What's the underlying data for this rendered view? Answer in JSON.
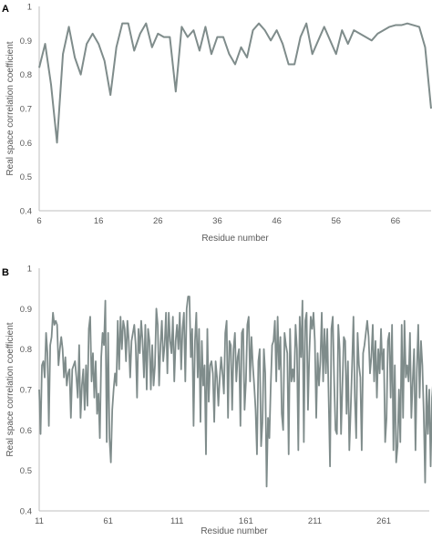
{
  "chart_data": [
    {
      "panel": "A",
      "type": "line",
      "xlabel": "Residue number",
      "ylabel": "Real space correlation coefficient",
      "xlim": [
        6,
        72
      ],
      "ylim": [
        0.4,
        1
      ],
      "xticks": [
        6,
        16,
        26,
        36,
        46,
        56,
        66
      ],
      "yticks": [
        0.4,
        0.5,
        0.6,
        0.7,
        0.8,
        0.9,
        1
      ],
      "yticklabels": [
        "0.4",
        "0.5",
        "0.6",
        "0.7",
        "0.8",
        "0.9",
        "1"
      ],
      "grid": false,
      "color": "#7f8c8b",
      "x": [
        6,
        7,
        8,
        9,
        10,
        11,
        12,
        13,
        14,
        15,
        16,
        17,
        18,
        19,
        20,
        21,
        22,
        23,
        24,
        25,
        26,
        27,
        28,
        29,
        30,
        31,
        32,
        33,
        34,
        35,
        36,
        37,
        38,
        39,
        40,
        41,
        42,
        43,
        44,
        45,
        46,
        47,
        48,
        49,
        50,
        51,
        52,
        53,
        54,
        55,
        56,
        57,
        58,
        59,
        60,
        61,
        62,
        63,
        64,
        65,
        66,
        67,
        68,
        69,
        70,
        71,
        72
      ],
      "y": [
        0.82,
        0.89,
        0.77,
        0.6,
        0.86,
        0.94,
        0.85,
        0.8,
        0.89,
        0.92,
        0.89,
        0.84,
        0.74,
        0.88,
        0.95,
        0.95,
        0.87,
        0.92,
        0.95,
        0.88,
        0.92,
        0.91,
        0.91,
        0.75,
        0.94,
        0.91,
        0.93,
        0.87,
        0.94,
        0.86,
        0.91,
        0.91,
        0.86,
        0.83,
        0.88,
        0.85,
        0.93,
        0.95,
        0.93,
        0.9,
        0.93,
        0.89,
        0.83,
        0.83,
        0.91,
        0.95,
        0.86,
        0.9,
        0.94,
        0.9,
        0.86,
        0.93,
        0.89,
        0.93,
        0.92,
        0.91,
        0.9,
        0.92,
        0.93,
        0.94,
        0.945,
        0.945,
        0.95,
        0.945,
        0.94,
        0.88,
        0.7
      ]
    },
    {
      "panel": "B",
      "type": "line",
      "xlabel": "Residue number",
      "ylabel": "Real space correlation coefficient",
      "xlim": [
        11,
        294
      ],
      "ylim": [
        0.4,
        1
      ],
      "xticks": [
        11,
        61,
        111,
        161,
        211,
        261
      ],
      "yticks": [
        0.4,
        0.5,
        0.6,
        0.7,
        0.8,
        0.9,
        1
      ],
      "yticklabels": [
        "0.4",
        "0.5",
        "0.6",
        "0.7",
        "0.8",
        "0.9",
        "1"
      ],
      "grid": false,
      "color": "#7f8c8b",
      "x_start": 11,
      "x_step": 1,
      "y": [
        0.7,
        0.59,
        0.76,
        0.77,
        0.73,
        0.84,
        0.79,
        0.61,
        0.81,
        0.83,
        0.89,
        0.86,
        0.87,
        0.86,
        0.76,
        0.8,
        0.83,
        0.8,
        0.73,
        0.78,
        0.71,
        0.74,
        0.75,
        0.63,
        0.75,
        0.76,
        0.77,
        0.73,
        0.68,
        0.81,
        0.63,
        0.71,
        0.75,
        0.65,
        0.76,
        0.66,
        0.85,
        0.88,
        0.72,
        0.79,
        0.68,
        0.77,
        0.64,
        0.69,
        0.58,
        0.78,
        0.84,
        0.81,
        0.92,
        0.57,
        0.84,
        0.58,
        0.52,
        0.65,
        0.7,
        0.74,
        0.71,
        0.87,
        0.75,
        0.88,
        0.8,
        0.87,
        0.85,
        0.77,
        0.87,
        0.82,
        0.73,
        0.82,
        0.84,
        0.86,
        0.81,
        0.68,
        0.85,
        0.79,
        0.87,
        0.82,
        0.73,
        0.86,
        0.7,
        0.85,
        0.82,
        0.7,
        0.81,
        0.71,
        0.76,
        0.9,
        0.86,
        0.71,
        0.81,
        0.87,
        0.77,
        0.81,
        0.89,
        0.74,
        0.89,
        0.82,
        0.79,
        0.88,
        0.72,
        0.82,
        0.86,
        0.8,
        0.89,
        0.75,
        0.85,
        0.89,
        0.72,
        0.9,
        0.93,
        0.93,
        0.78,
        0.85,
        0.61,
        0.82,
        0.89,
        0.73,
        0.85,
        0.62,
        0.82,
        0.71,
        0.76,
        0.54,
        0.85,
        0.67,
        0.76,
        0.77,
        0.74,
        0.62,
        0.77,
        0.73,
        0.66,
        0.73,
        0.78,
        0.74,
        0.69,
        0.84,
        0.87,
        0.63,
        0.82,
        0.81,
        0.65,
        0.8,
        0.84,
        0.72,
        0.78,
        0.8,
        0.61,
        0.84,
        0.85,
        0.65,
        0.72,
        0.86,
        0.88,
        0.72,
        0.83,
        0.76,
        0.71,
        0.65,
        0.54,
        0.77,
        0.8,
        0.56,
        0.62,
        0.8,
        0.74,
        0.46,
        0.63,
        0.58,
        0.71,
        0.81,
        0.82,
        0.87,
        0.72,
        0.88,
        0.75,
        0.83,
        0.64,
        0.6,
        0.84,
        0.81,
        0.79,
        0.54,
        0.85,
        0.72,
        0.75,
        0.72,
        0.86,
        0.8,
        0.55,
        0.88,
        0.78,
        0.92,
        0.57,
        0.87,
        0.89,
        0.65,
        0.79,
        0.88,
        0.85,
        0.89,
        0.82,
        0.63,
        0.79,
        0.71,
        0.77,
        0.89,
        0.72,
        0.85,
        0.74,
        0.85,
        0.68,
        0.51,
        0.85,
        0.88,
        0.72,
        0.6,
        0.59,
        0.86,
        0.8,
        0.59,
        0.71,
        0.83,
        0.82,
        0.64,
        0.77,
        0.55,
        0.65,
        0.76,
        0.88,
        0.68,
        0.58,
        0.84,
        0.76,
        0.73,
        0.55,
        0.79,
        0.81,
        0.84,
        0.87,
        0.83,
        0.74,
        0.78,
        0.86,
        0.72,
        0.82,
        0.68,
        0.8,
        0.74,
        0.85,
        0.75,
        0.8,
        0.57,
        0.63,
        0.82,
        0.84,
        0.68,
        0.86,
        0.55,
        0.76,
        0.52,
        0.56,
        0.7,
        0.57,
        0.86,
        0.63,
        0.87,
        0.73,
        0.76,
        0.72,
        0.84,
        0.63,
        0.72,
        0.8,
        0.55,
        0.75,
        0.86,
        0.68,
        0.82,
        0.76,
        0.64,
        0.47,
        0.71,
        0.59,
        0.7,
        0.51,
        0.68,
        0.73,
        0.83,
        0.82
      ]
    }
  ]
}
